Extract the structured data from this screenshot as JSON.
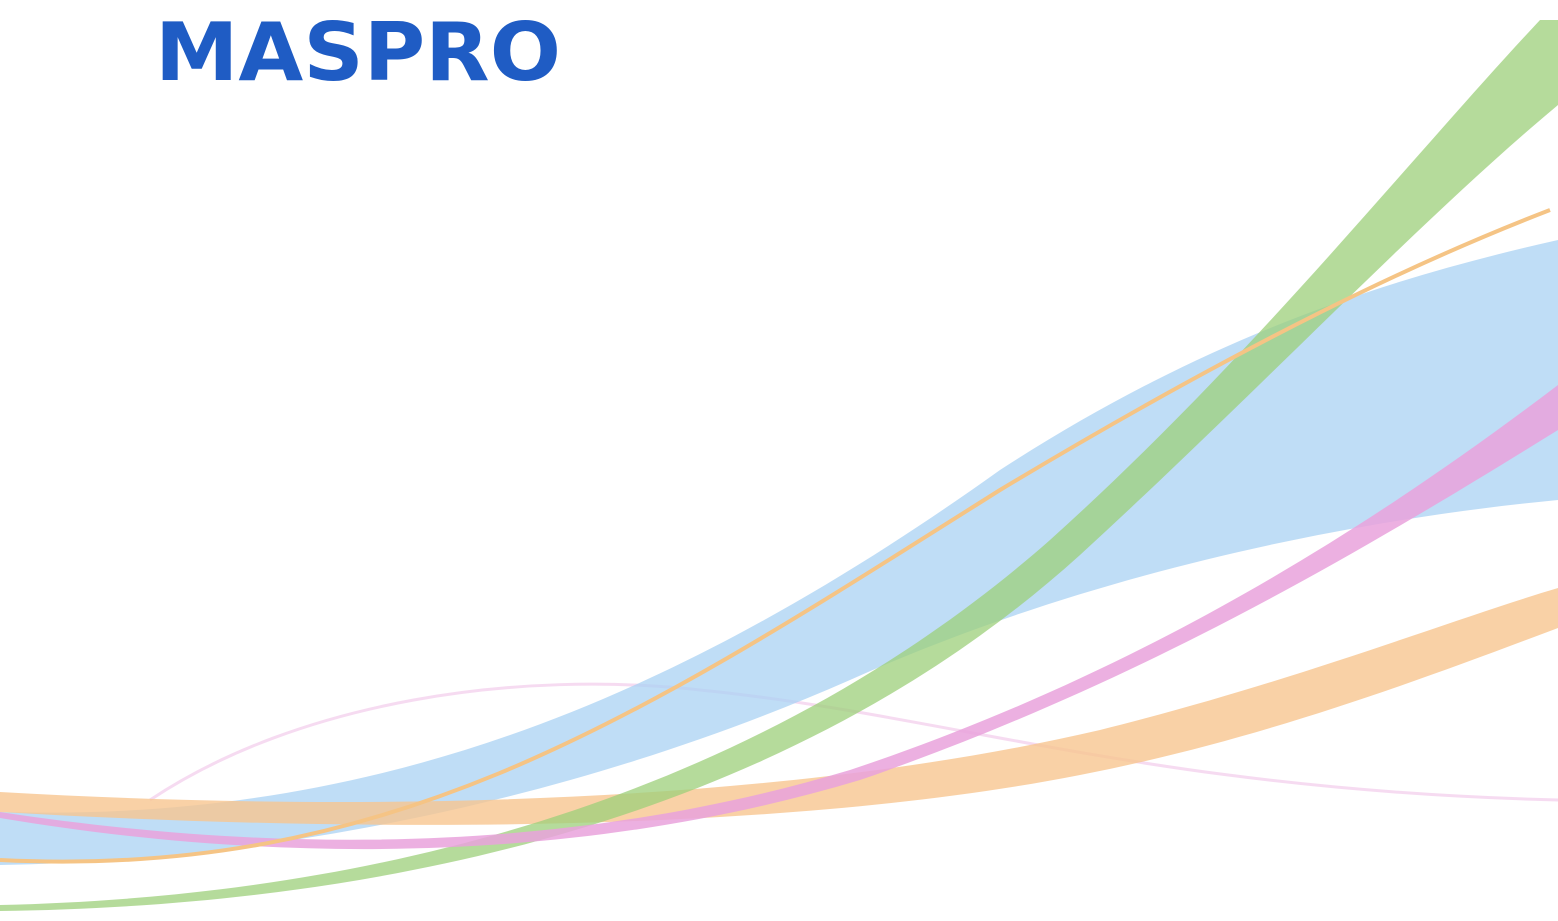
{
  "logo": {
    "text": "MASPRO"
  }
}
